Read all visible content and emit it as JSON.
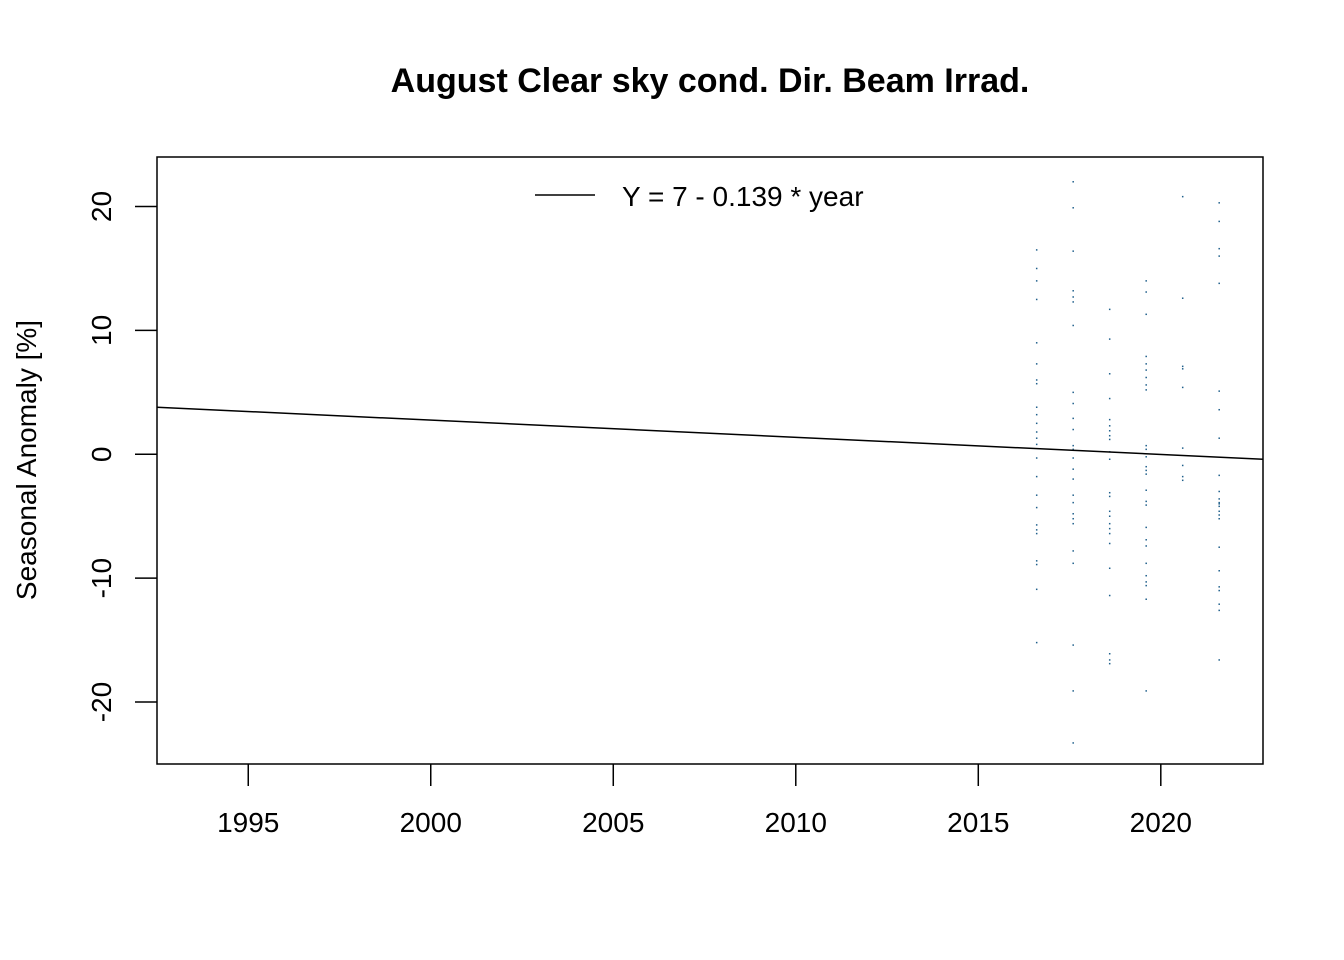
{
  "chart_data": {
    "type": "scatter",
    "title": "August Clear sky cond. Dir. Beam Irrad.",
    "xlabel": "",
    "ylabel": "Seasonal Anomaly [%]",
    "xlim": [
      1992.5,
      2022.8
    ],
    "ylim": [
      -25,
      24
    ],
    "grid": false,
    "legend_position": "top-center",
    "x_ticks": [
      1995,
      2000,
      2005,
      2010,
      2015,
      2020
    ],
    "x_tick_labels": [
      "1995",
      "2000",
      "2005",
      "2010",
      "2015",
      "2020"
    ],
    "y_ticks": [
      -20,
      -10,
      0,
      10,
      20
    ],
    "y_tick_labels": [
      "-20",
      "-10",
      "0",
      "10",
      "20"
    ],
    "point_color": "#1f5f8b",
    "line_color": "#000000",
    "trend_line": {
      "label": "Y = 7 - 0.139 * year",
      "x": [
        1992.5,
        2022.8
      ],
      "y": [
        3.8,
        -0.4
      ]
    },
    "series": [
      {
        "x": [
          2016.6,
          2016.6,
          2016.6,
          2016.6,
          2016.6,
          2016.6,
          2016.6,
          2016.6,
          2016.6,
          2016.6,
          2016.6,
          2016.6,
          2016.6,
          2016.6,
          2016.6,
          2016.6,
          2016.6,
          2016.6,
          2016.6,
          2016.6,
          2016.6,
          2016.6,
          2016.6,
          2016.6,
          2016.6,
          2017.6,
          2017.6,
          2017.6,
          2017.6,
          2017.6,
          2017.6,
          2017.6,
          2017.6,
          2017.6,
          2017.6,
          2017.6,
          2017.6,
          2017.6,
          2017.6,
          2017.6,
          2017.6,
          2017.6,
          2017.6,
          2017.6,
          2017.6,
          2017.6,
          2017.6,
          2017.6,
          2017.6,
          2017.6,
          2017.6,
          2018.6,
          2018.6,
          2018.6,
          2018.6,
          2018.6,
          2018.6,
          2018.6,
          2018.6,
          2018.6,
          2018.6,
          2018.6,
          2018.6,
          2018.6,
          2018.6,
          2018.6,
          2018.6,
          2018.6,
          2018.6,
          2018.6,
          2018.6,
          2018.6,
          2018.6,
          2018.6,
          2018.6,
          2019.6,
          2019.6,
          2019.6,
          2019.6,
          2019.6,
          2019.6,
          2019.6,
          2019.6,
          2019.6,
          2019.6,
          2019.6,
          2019.6,
          2019.6,
          2019.6,
          2019.6,
          2019.6,
          2019.6,
          2019.6,
          2019.6,
          2019.6,
          2019.6,
          2019.6,
          2019.6,
          2019.6,
          2019.6,
          2019.6,
          2019.6,
          2020.6,
          2020.6,
          2020.6,
          2020.6,
          2020.6,
          2020.6,
          2020.6,
          2020.6,
          2020.6,
          2021.6,
          2021.6,
          2021.6,
          2021.6,
          2021.6,
          2021.6,
          2021.6,
          2021.6,
          2021.6,
          2021.6,
          2021.6,
          2021.6,
          2021.6,
          2021.6,
          2021.6,
          2021.6,
          2021.6,
          2021.6,
          2021.6,
          2021.6,
          2021.6,
          2021.6,
          2021.6,
          2021.6
        ],
        "y": [
          16.5,
          15.0,
          14.0,
          12.5,
          9.0,
          7.3,
          6.0,
          5.7,
          3.8,
          3.2,
          1.8,
          1.3,
          0.8,
          -0.3,
          -1.8,
          -3.3,
          -5.7,
          -6.1,
          -6.4,
          -8.6,
          -8.9,
          -10.9,
          -15.2,
          2.5,
          -4.3,
          22.0,
          19.9,
          16.4,
          13.2,
          12.7,
          12.3,
          10.4,
          5.0,
          4.1,
          2.9,
          2.0,
          0.7,
          0.4,
          -1.2,
          -3.3,
          -3.9,
          -4.8,
          -5.2,
          -5.6,
          -7.8,
          -8.8,
          -15.4,
          -19.1,
          -23.3,
          -2.0,
          -0.3,
          11.7,
          9.3,
          6.5,
          4.5,
          2.8,
          2.3,
          1.9,
          1.5,
          1.2,
          -0.4,
          -3.1,
          -3.4,
          -4.6,
          -5.0,
          -5.6,
          -6.0,
          -6.4,
          -7.2,
          -9.2,
          -11.4,
          -16.1,
          -16.6,
          -16.9,
          0.2,
          14.0,
          13.1,
          11.3,
          7.9,
          7.3,
          6.8,
          6.2,
          5.6,
          5.2,
          0.7,
          0.4,
          -1.0,
          -1.3,
          -1.6,
          -2.9,
          -3.8,
          -4.1,
          -5.9,
          -6.9,
          -7.4,
          -8.8,
          -9.8,
          -10.3,
          -10.6,
          -11.7,
          -19.1,
          -0.2,
          20.8,
          12.6,
          7.1,
          6.9,
          5.4,
          0.5,
          -0.9,
          -1.8,
          -2.1,
          20.3,
          18.8,
          16.6,
          16.0,
          13.8,
          5.1,
          3.6,
          1.3,
          -1.7,
          -3.6,
          -3.9,
          -4.2,
          -4.6,
          -4.9,
          -5.2,
          -7.5,
          -9.4,
          -10.7,
          -11.0,
          -12.1,
          -12.6,
          -16.6,
          -4.0,
          -3.0
        ]
      }
    ]
  }
}
